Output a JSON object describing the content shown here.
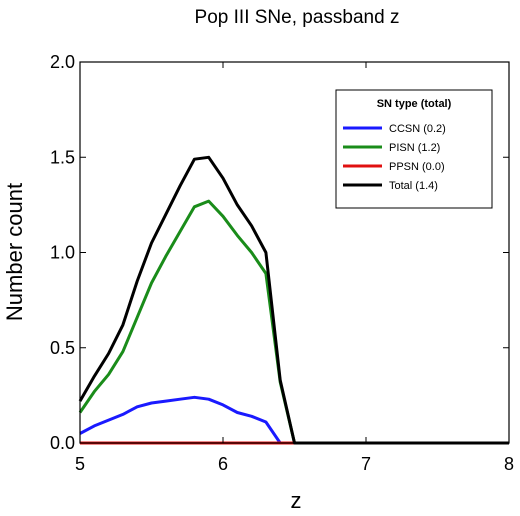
{
  "chart_data": {
    "type": "line",
    "title": "Pop III SNe, passband z",
    "xlabel": "z",
    "ylabel": "Number count",
    "xlim": [
      5,
      8
    ],
    "ylim": [
      0,
      2
    ],
    "xticks": [
      "5",
      "6",
      "7",
      "8"
    ],
    "yticks": [
      "0.0",
      "0.5",
      "1.0",
      "1.5",
      "2.0"
    ],
    "grid": false,
    "legend_position": "top-right",
    "legend_title": "SN type (total)",
    "series": [
      {
        "name": "CCSN (0.2)",
        "color": "#1a1aff",
        "x": [
          5.0,
          5.1,
          5.2,
          5.3,
          5.4,
          5.5,
          5.6,
          5.7,
          5.8,
          5.9,
          6.0,
          6.1,
          6.2,
          6.3,
          6.4,
          6.5,
          8.0
        ],
        "y": [
          0.05,
          0.09,
          0.12,
          0.15,
          0.19,
          0.21,
          0.22,
          0.23,
          0.24,
          0.23,
          0.2,
          0.16,
          0.14,
          0.11,
          0.0,
          0.0,
          0.0
        ]
      },
      {
        "name": "PISN (1.2)",
        "color": "#1a8c1a",
        "x": [
          5.0,
          5.1,
          5.2,
          5.3,
          5.4,
          5.5,
          5.6,
          5.7,
          5.8,
          5.9,
          6.0,
          6.1,
          6.2,
          6.3,
          6.4,
          6.5,
          8.0
        ],
        "y": [
          0.16,
          0.27,
          0.36,
          0.48,
          0.66,
          0.84,
          0.98,
          1.11,
          1.24,
          1.27,
          1.19,
          1.09,
          1.0,
          0.89,
          0.32,
          0.0,
          0.0
        ]
      },
      {
        "name": "PPSN (0.0)",
        "color": "#e01010",
        "x": [
          5.0,
          8.0
        ],
        "y": [
          0.0,
          0.0
        ]
      },
      {
        "name": "Total (1.4)",
        "color": "#000000",
        "x": [
          5.0,
          5.1,
          5.2,
          5.3,
          5.4,
          5.5,
          5.6,
          5.7,
          5.8,
          5.9,
          6.0,
          6.1,
          6.2,
          6.3,
          6.4,
          6.5,
          8.0
        ],
        "y": [
          0.22,
          0.35,
          0.47,
          0.62,
          0.85,
          1.05,
          1.2,
          1.35,
          1.49,
          1.5,
          1.39,
          1.25,
          1.14,
          1.0,
          0.33,
          0.0,
          0.0
        ]
      }
    ]
  }
}
